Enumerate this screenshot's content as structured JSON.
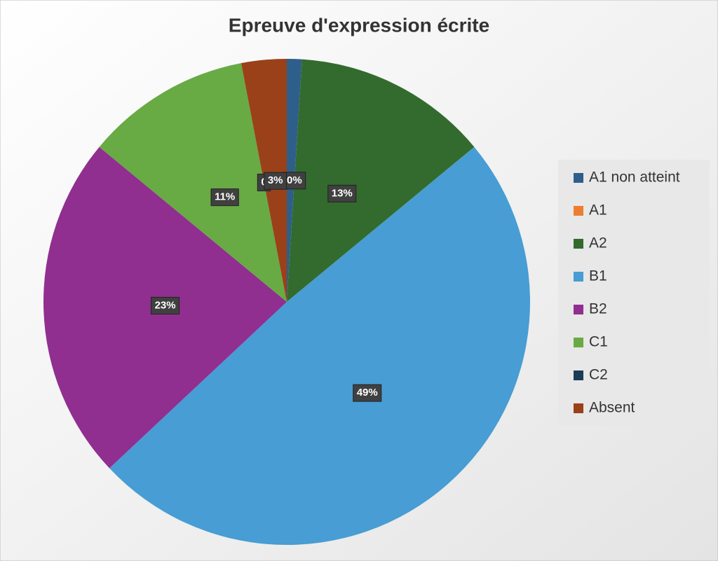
{
  "chart_data": {
    "type": "pie",
    "title": "Epreuve d'expression écrite",
    "categories": [
      "A1 non atteint",
      "A1",
      "A2",
      "B1",
      "B2",
      "C1",
      "C2",
      "Absent"
    ],
    "values": [
      1,
      0,
      13,
      49,
      23,
      11,
      0,
      3
    ],
    "value_labels": [
      null,
      "0%",
      "13%",
      "49%",
      "23%",
      "11%",
      "0",
      "3%"
    ],
    "colors": [
      "#2e5f8a",
      "#ed7d31",
      "#336b2e",
      "#479dd4",
      "#902f8f",
      "#68aa44",
      "#1a3d55",
      "#9a4119"
    ],
    "legend": "right"
  }
}
